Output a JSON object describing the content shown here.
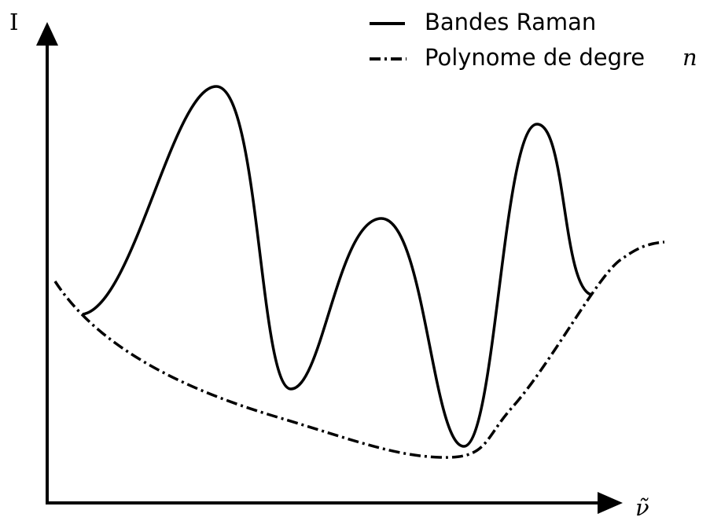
{
  "axes": {
    "y_label": "I",
    "x_label": "ν̃"
  },
  "legend": [
    {
      "label": "Bandes Raman"
    },
    {
      "label": "Polynome de degre",
      "symbol": "n"
    }
  ]
}
